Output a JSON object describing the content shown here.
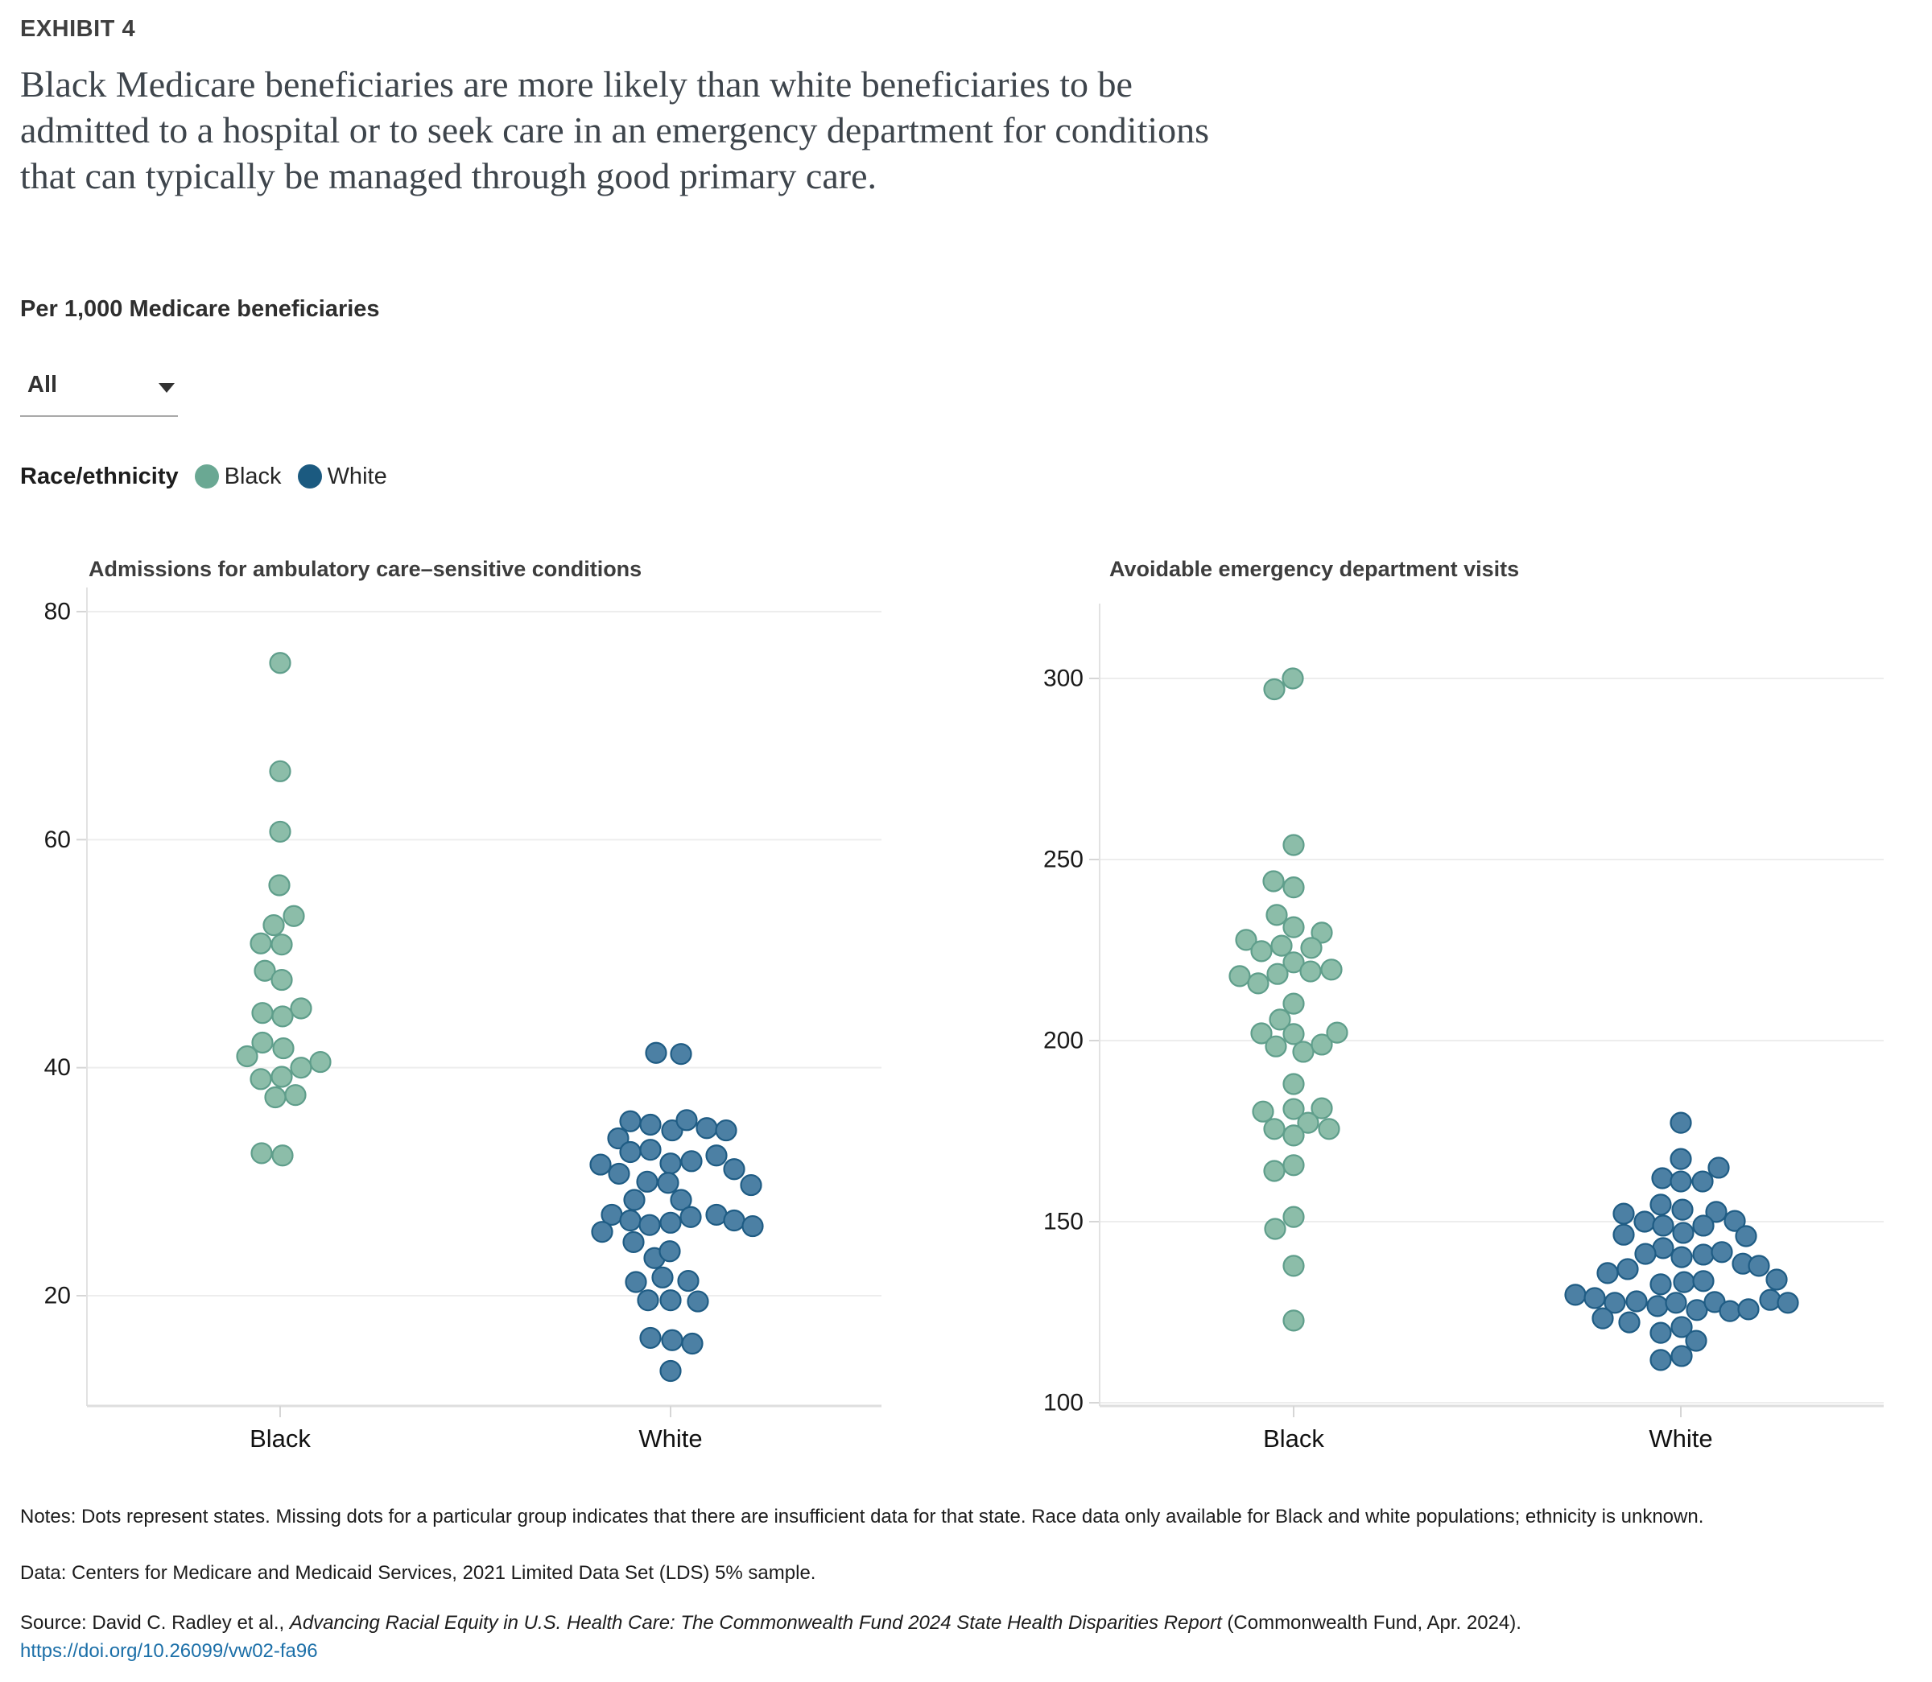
{
  "header": {
    "exhibit_label": "EXHIBIT 4",
    "title_lines": [
      "Black Medicare beneficiaries are more likely than white beneficiaries to be",
      "admitted to a hospital or to seek care in an emergency department for conditions",
      "that can typically be managed through good primary care."
    ],
    "subtitle": "Per 1,000 Medicare beneficiaries"
  },
  "controls": {
    "measure_dropdown": {
      "value": "All"
    }
  },
  "legend": {
    "label": "Race/ethnicity",
    "items": [
      {
        "label": "Black",
        "color": "#6aa893"
      },
      {
        "label": "White",
        "color": "#1b5a80"
      }
    ]
  },
  "colors": {
    "black_dot_fill": "#8cbda9",
    "black_dot_stroke": "#5f9e8b",
    "white_dot_fill": "#4c80a4",
    "white_dot_stroke": "#1f5c84",
    "link": "#1b6fa8"
  },
  "chart_data": [
    {
      "type": "scatter",
      "variant": "beeswarm",
      "title": "Admissions for ambulatory care–sensitive conditions",
      "ylabel": "per 1,000 Medicare beneficiaries",
      "ylim": [
        10,
        82
      ],
      "yticks": [
        80,
        60,
        40,
        20
      ],
      "categories": [
        "Black",
        "White"
      ],
      "grid": true,
      "legend_position": "top",
      "series": [
        {
          "name": "Black",
          "points": [
            [
              75.5,
              0
            ],
            [
              66,
              0
            ],
            [
              60.7,
              0
            ],
            [
              56,
              -1
            ],
            [
              53.3,
              17
            ],
            [
              52.5,
              -8
            ],
            [
              50.9,
              -24
            ],
            [
              50.8,
              2
            ],
            [
              48.5,
              -19
            ],
            [
              47.7,
              2
            ],
            [
              45.2,
              26
            ],
            [
              44.8,
              -22
            ],
            [
              44.5,
              3
            ],
            [
              42.2,
              -22
            ],
            [
              41.7,
              4
            ],
            [
              41,
              -41
            ],
            [
              40.5,
              50
            ],
            [
              40,
              26
            ],
            [
              39.2,
              2
            ],
            [
              39,
              -24
            ],
            [
              37.6,
              19
            ],
            [
              37.4,
              -6
            ],
            [
              32.5,
              -23
            ],
            [
              32.3,
              3
            ]
          ]
        },
        {
          "name": "White",
          "points": [
            [
              41.3,
              -18
            ],
            [
              41.2,
              13
            ],
            [
              35.3,
              -50
            ],
            [
              35,
              -25
            ],
            [
              34.5,
              2
            ],
            [
              35.4,
              20
            ],
            [
              34.7,
              45
            ],
            [
              34.5,
              69
            ],
            [
              33.8,
              -65
            ],
            [
              32.6,
              -50
            ],
            [
              32.8,
              -25
            ],
            [
              31.6,
              0
            ],
            [
              31.8,
              26
            ],
            [
              32.3,
              57
            ],
            [
              31.1,
              79
            ],
            [
              29.7,
              100
            ],
            [
              31.5,
              -87
            ],
            [
              30.7,
              -64
            ],
            [
              30,
              -29
            ],
            [
              29.9,
              -3
            ],
            [
              28.4,
              -45
            ],
            [
              28.4,
              13
            ],
            [
              27.1,
              -73
            ],
            [
              26.6,
              -50
            ],
            [
              26.2,
              -26
            ],
            [
              26.4,
              0
            ],
            [
              26.9,
              25
            ],
            [
              27.1,
              57
            ],
            [
              26.6,
              79
            ],
            [
              26.1,
              102
            ],
            [
              25.6,
              -85
            ],
            [
              24.7,
              -46
            ],
            [
              23.3,
              -20
            ],
            [
              23.9,
              -1
            ],
            [
              21.2,
              -43
            ],
            [
              21.6,
              -10
            ],
            [
              21.3,
              22
            ],
            [
              19.6,
              -28
            ],
            [
              19.6,
              0
            ],
            [
              19.5,
              34
            ],
            [
              16.3,
              -25
            ],
            [
              16.1,
              2
            ],
            [
              15.8,
              27
            ],
            [
              13.4,
              0
            ]
          ]
        }
      ]
    },
    {
      "type": "scatter",
      "variant": "beeswarm",
      "title": "Avoidable emergency department visits",
      "ylabel": "per 1,000 Medicare beneficiaries",
      "ylim": [
        98,
        318
      ],
      "yticks": [
        300,
        250,
        200,
        150,
        100
      ],
      "categories": [
        "Black",
        "White"
      ],
      "grid": true,
      "legend_position": "top",
      "series": [
        {
          "name": "Black",
          "points": [
            [
              300,
              -1
            ],
            [
              297,
              -24
            ],
            [
              254,
              0
            ],
            [
              244,
              -25
            ],
            [
              242.3,
              0
            ],
            [
              234.7,
              -21
            ],
            [
              231.3,
              0
            ],
            [
              229.8,
              35
            ],
            [
              227.8,
              -59
            ],
            [
              224.7,
              -40
            ],
            [
              226.2,
              -15
            ],
            [
              225.6,
              22
            ],
            [
              221.6,
              0
            ],
            [
              219.1,
              21
            ],
            [
              219.6,
              47
            ],
            [
              217.8,
              -67
            ],
            [
              215.8,
              -44
            ],
            [
              218.4,
              -20
            ],
            [
              210.2,
              0
            ],
            [
              205.8,
              -17
            ],
            [
              202,
              -40
            ],
            [
              201.8,
              0
            ],
            [
              198.4,
              -22
            ],
            [
              196.9,
              12
            ],
            [
              198.9,
              35
            ],
            [
              202.2,
              54
            ],
            [
              188,
              0
            ],
            [
              180.4,
              -38
            ],
            [
              181.1,
              0
            ],
            [
              181.3,
              35
            ],
            [
              175.6,
              -24
            ],
            [
              177.3,
              18
            ],
            [
              175.6,
              44
            ],
            [
              173.8,
              0
            ],
            [
              164,
              -24
            ],
            [
              165.6,
              0
            ],
            [
              151.3,
              0
            ],
            [
              148,
              -23
            ],
            [
              137.8,
              0
            ],
            [
              122.7,
              0
            ]
          ]
        },
        {
          "name": "White",
          "points": [
            [
              177.3,
              0
            ],
            [
              167.3,
              0
            ],
            [
              164.9,
              47
            ],
            [
              162,
              -23
            ],
            [
              161.1,
              0
            ],
            [
              161.1,
              27
            ],
            [
              154.7,
              -25
            ],
            [
              153.3,
              2
            ],
            [
              152.2,
              -71
            ],
            [
              152.7,
              44
            ],
            [
              150,
              -45
            ],
            [
              148.9,
              -22
            ],
            [
              148.9,
              28
            ],
            [
              150.2,
              67
            ],
            [
              146.4,
              -71
            ],
            [
              146.9,
              3
            ],
            [
              146,
              81
            ],
            [
              142.7,
              -22
            ],
            [
              141.1,
              -44
            ],
            [
              140.2,
              1
            ],
            [
              140.9,
              28
            ],
            [
              141.6,
              51
            ],
            [
              138.4,
              77
            ],
            [
              137.8,
              97
            ],
            [
              135.8,
              -91
            ],
            [
              136.9,
              -66
            ],
            [
              134,
              119
            ],
            [
              132.7,
              -25
            ],
            [
              133.3,
              4
            ],
            [
              133.6,
              28
            ],
            [
              129.8,
              -131
            ],
            [
              128.9,
              -107
            ],
            [
              127.6,
              -82
            ],
            [
              128,
              -55
            ],
            [
              126.7,
              -29
            ],
            [
              127.6,
              -6
            ],
            [
              125.6,
              20
            ],
            [
              127.8,
              42
            ],
            [
              125.3,
              61
            ],
            [
              125.8,
              84
            ],
            [
              128.4,
              111
            ],
            [
              127.6,
              133
            ],
            [
              123.3,
              -97
            ],
            [
              122.2,
              -64
            ],
            [
              119.3,
              -25
            ],
            [
              120.9,
              1
            ],
            [
              117.1,
              19
            ],
            [
              111.8,
              -25
            ],
            [
              112.9,
              1
            ]
          ]
        }
      ]
    }
  ],
  "footer": {
    "notes": "Notes: Dots represent states. Missing dots for a particular group indicates that there are insufficient data for that state. Race data only available for Black and white populations; ethnicity is unknown.",
    "data": "Data: Centers for Medicare and Medicaid Services, 2021 Limited Data Set (LDS) 5% sample.",
    "source_prefix": "Source: David C. Radley et al., ",
    "source_italic": "Advancing Racial Equity in U.S. Health Care: The Commonwealth Fund 2024 State Health Disparities Report",
    "source_suffix": " (Commonwealth Fund, Apr. 2024).",
    "doi_link": "https://doi.org/10.26099/vw02-fa96"
  }
}
